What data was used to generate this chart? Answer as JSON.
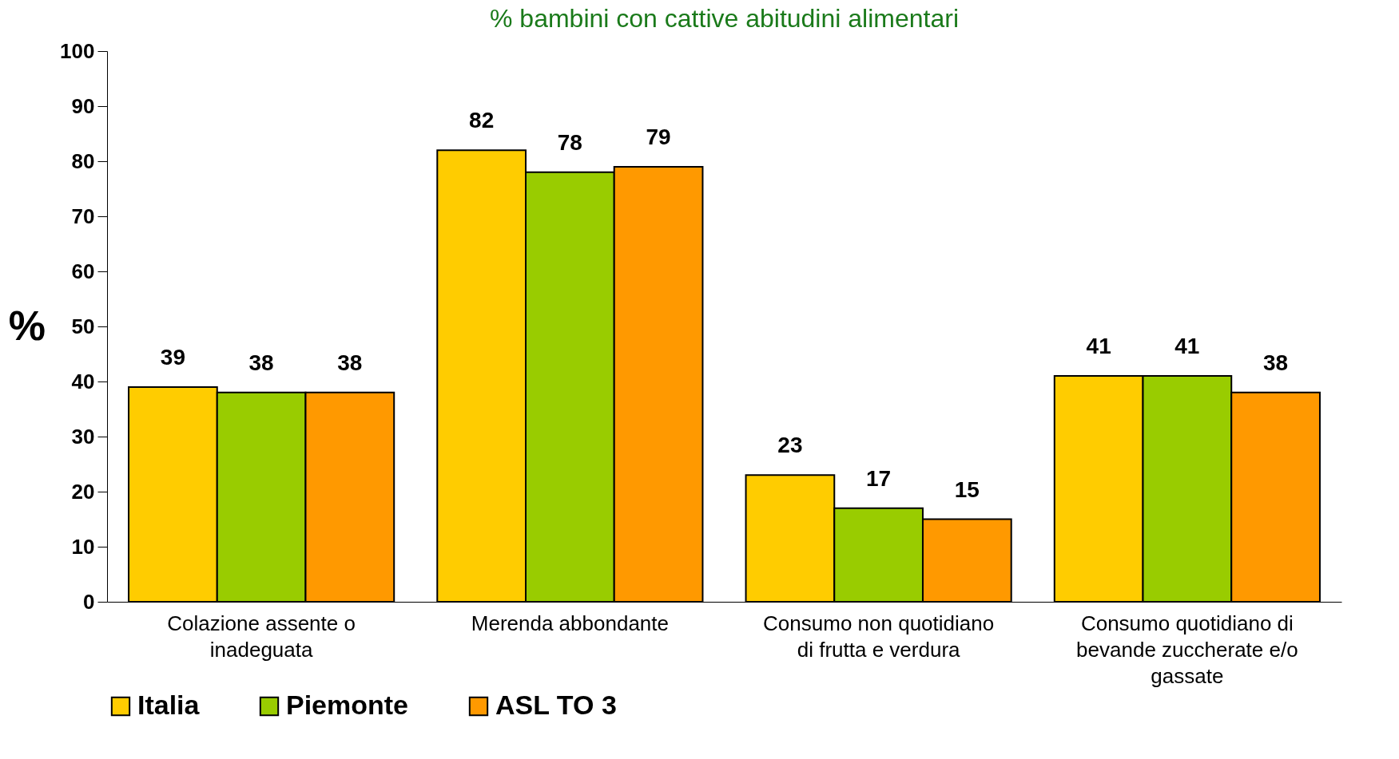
{
  "chart_data": {
    "type": "bar",
    "title": "% bambini con cattive abitudini alimentari",
    "ylabel": "%",
    "categories": [
      "Colazione assente o inadeguata",
      "Merenda abbondante",
      "Consumo non quotidiano di frutta e verdura",
      "Consumo quotidiano di bevande zuccherate e/o gassate"
    ],
    "series": [
      {
        "name": "Italia",
        "color": "#ffcc00",
        "values": [
          39,
          82,
          23,
          41
        ]
      },
      {
        "name": "Piemonte",
        "color": "#99cc00",
        "values": [
          38,
          78,
          17,
          41
        ]
      },
      {
        "name": "ASL TO 3",
        "color": "#ff9900",
        "values": [
          38,
          79,
          15,
          38
        ]
      }
    ],
    "ylim": [
      0,
      100
    ],
    "yticks": [
      0,
      10,
      20,
      30,
      40,
      50,
      60,
      70,
      80,
      90,
      100
    ],
    "grid": false,
    "legend": "bottom",
    "data_labels": true
  }
}
